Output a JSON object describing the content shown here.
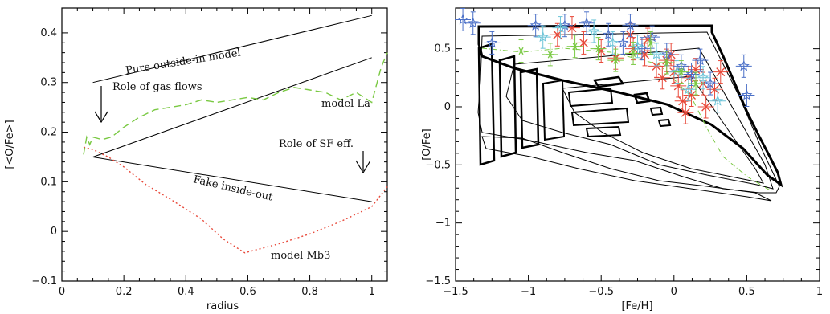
{
  "chart_data": [
    {
      "type": "line",
      "xlabel": "radius",
      "ylabel": "[<O/Fe>]",
      "xlim": [
        0,
        1.05
      ],
      "ylim": [
        -0.1,
        0.45
      ],
      "x_ticks": [
        0,
        0.2,
        0.4,
        0.6,
        0.8,
        1
      ],
      "x_tick_labels": [
        "0",
        "0.2",
        "0.4",
        "0.6",
        "0.8",
        "1"
      ],
      "y_ticks": [
        -0.1,
        0,
        0.1,
        0.2,
        0.3,
        0.4
      ],
      "y_tick_labels": [
        "−0.1",
        "0",
        "0.1",
        "0.2",
        "0.3",
        "0.4"
      ],
      "series": [
        {
          "style": "solid",
          "color": "#000000",
          "x": [
            0.1,
            1.0
          ],
          "y": [
            0.3,
            0.435
          ]
        },
        {
          "style": "solid",
          "color": "#000000",
          "x": [
            0.1,
            1.0
          ],
          "y": [
            0.15,
            0.35
          ]
        },
        {
          "style": "solid",
          "color": "#000000",
          "x": [
            0.1,
            1.0
          ],
          "y": [
            0.15,
            0.06
          ]
        },
        {
          "name": "model La",
          "style": "dashed",
          "color": "#7ac943",
          "x": [
            0.07,
            0.08,
            0.09,
            0.1,
            0.13,
            0.16,
            0.2,
            0.25,
            0.3,
            0.35,
            0.4,
            0.45,
            0.5,
            0.55,
            0.6,
            0.65,
            0.7,
            0.75,
            0.8,
            0.85,
            0.9,
            0.95,
            1.0,
            1.03,
            1.05
          ],
          "y": [
            0.155,
            0.19,
            0.175,
            0.19,
            0.185,
            0.19,
            0.21,
            0.23,
            0.245,
            0.25,
            0.255,
            0.265,
            0.26,
            0.265,
            0.27,
            0.265,
            0.28,
            0.29,
            0.285,
            0.28,
            0.265,
            0.28,
            0.26,
            0.33,
            0.36
          ]
        },
        {
          "name": "model Mb3",
          "style": "dotted",
          "color": "#e8493a",
          "x": [
            0.07,
            0.1,
            0.15,
            0.2,
            0.27,
            0.35,
            0.45,
            0.52,
            0.59,
            0.7,
            0.8,
            0.9,
            1.0,
            1.05
          ],
          "y": [
            0.17,
            0.165,
            0.15,
            0.13,
            0.095,
            0.065,
            0.025,
            -0.015,
            -0.043,
            -0.025,
            -0.005,
            0.02,
            0.05,
            0.09
          ]
        }
      ],
      "annotations": [
        "Pure outside-in model",
        "Role of gas flows",
        "model La",
        "Role of SF eff.",
        "Fake inside-out",
        "model Mb3"
      ]
    },
    {
      "type": "scatter",
      "xlabel": "[Fe/H]",
      "ylabel": "[O/Fe]",
      "xlim": [
        -1.5,
        1.0
      ],
      "ylim": [
        -1.5,
        0.85
      ],
      "x_ticks": [
        -1.5,
        -1,
        -0.5,
        0,
        0.5,
        1
      ],
      "x_tick_labels": [
        "−1.5",
        "−1",
        "−0.5",
        "0",
        "0.5",
        "1"
      ],
      "y_ticks": [
        -1.5,
        -1,
        -0.5,
        0,
        0.5
      ],
      "y_tick_labels": [
        "−1.5",
        "−1",
        "−0.5",
        "0",
        "0.5"
      ],
      "series": [
        {
          "marker": "cross",
          "color": "#e8493a",
          "x": [
            -0.8,
            -0.7,
            -0.62,
            -0.5,
            -0.4,
            -0.3,
            -0.28,
            -0.2,
            -0.12,
            -0.08,
            -0.05,
            0.0,
            0.03,
            0.06,
            0.1,
            0.12,
            0.15,
            0.2,
            0.22,
            0.28,
            0.32,
            -0.18,
            -0.02,
            0.08
          ],
          "y": [
            0.62,
            0.68,
            0.55,
            0.48,
            0.42,
            0.62,
            0.5,
            0.45,
            0.35,
            0.25,
            0.4,
            0.3,
            0.18,
            0.05,
            0.25,
            0.1,
            0.32,
            0.2,
            0.0,
            0.15,
            0.3,
            0.58,
            0.45,
            -0.05
          ]
        },
        {
          "marker": "star",
          "color": "#4a6fc7",
          "x": [
            -1.38,
            -1.25,
            -0.95,
            -0.75,
            -0.6,
            -0.45,
            -0.35,
            -0.3,
            -0.22,
            -0.15,
            -0.05,
            0.05,
            0.12,
            0.18,
            0.25,
            0.48,
            0.5,
            -1.45
          ],
          "y": [
            0.72,
            0.55,
            0.7,
            0.7,
            0.72,
            0.62,
            0.55,
            0.7,
            0.5,
            0.6,
            0.45,
            0.35,
            0.28,
            0.4,
            0.2,
            0.35,
            0.1,
            0.75
          ]
        },
        {
          "marker": "star",
          "color": "#6cc4d8",
          "x": [
            -0.9,
            -0.78,
            -0.55,
            -0.42,
            -0.25,
            -0.12,
            0.02,
            0.1,
            0.2,
            0.3
          ],
          "y": [
            0.6,
            0.68,
            0.65,
            0.55,
            0.52,
            0.45,
            0.3,
            0.15,
            0.25,
            0.05
          ]
        },
        {
          "marker": "asterisk",
          "color": "#7ac943",
          "x": [
            -1.05,
            -0.85,
            -0.68,
            -0.52,
            -0.4,
            -0.28,
            -0.16,
            -0.05,
            0.05,
            0.15
          ],
          "y": [
            0.48,
            0.45,
            0.52,
            0.5,
            0.4,
            0.46,
            0.55,
            0.38,
            0.3,
            0.2
          ]
        }
      ]
    }
  ]
}
